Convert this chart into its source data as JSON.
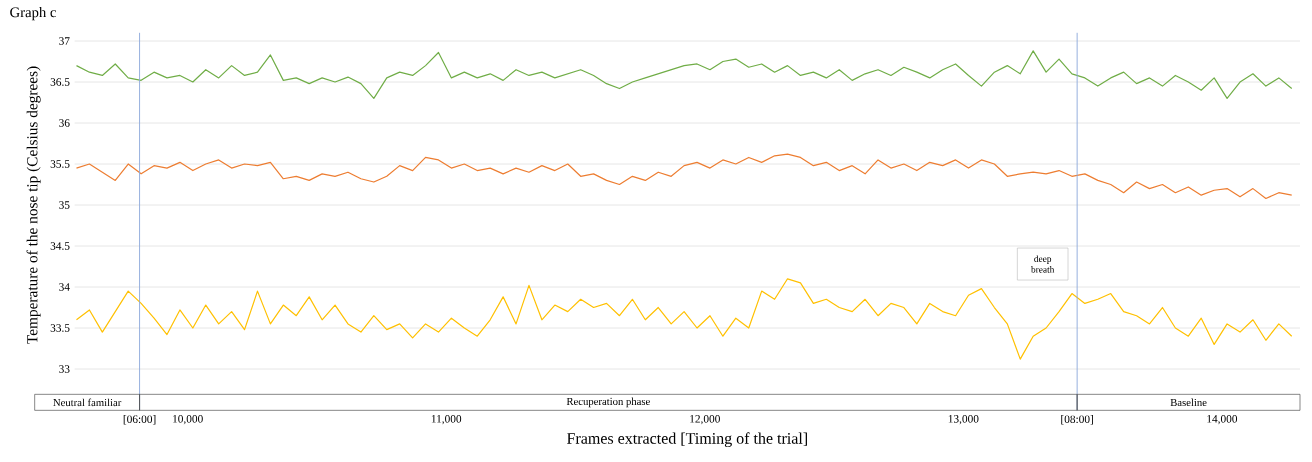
{
  "chart_data": {
    "type": "line",
    "title": "Graph c",
    "xlabel": "Frames extracted [Timing of the trial]",
    "ylabel": "Temperature of the nose tip (Celsius degrees)",
    "x": [
      9570,
      9620,
      9670,
      9720,
      9770,
      9820,
      9870,
      9920,
      9970,
      10020,
      10070,
      10120,
      10170,
      10220,
      10270,
      10320,
      10370,
      10420,
      10470,
      10520,
      10570,
      10620,
      10670,
      10720,
      10770,
      10820,
      10870,
      10920,
      10970,
      11020,
      11070,
      11120,
      11170,
      11220,
      11270,
      11320,
      11370,
      11420,
      11470,
      11520,
      11570,
      11620,
      11670,
      11720,
      11770,
      11820,
      11870,
      11920,
      11970,
      12020,
      12070,
      12120,
      12170,
      12220,
      12270,
      12320,
      12370,
      12420,
      12470,
      12520,
      12570,
      12620,
      12670,
      12720,
      12770,
      12820,
      12870,
      12920,
      12970,
      13020,
      13070,
      13120,
      13170,
      13220,
      13270,
      13320,
      13370,
      13420,
      13470,
      13520,
      13570,
      13620,
      13670,
      13720,
      13770,
      13820,
      13870,
      13920,
      13970,
      14020,
      14070,
      14120,
      14170,
      14220,
      14270
    ],
    "series": [
      {
        "color": "#70ad47",
        "values": [
          36.7,
          36.62,
          36.58,
          36.72,
          36.55,
          36.52,
          36.62,
          36.55,
          36.58,
          36.5,
          36.65,
          36.55,
          36.7,
          36.58,
          36.62,
          36.83,
          36.52,
          36.55,
          36.48,
          36.55,
          36.5,
          36.56,
          36.48,
          36.3,
          36.55,
          36.62,
          36.58,
          36.7,
          36.86,
          36.55,
          36.62,
          36.55,
          36.6,
          36.52,
          36.65,
          36.58,
          36.62,
          36.55,
          36.6,
          36.65,
          36.58,
          36.48,
          36.42,
          36.5,
          36.55,
          36.6,
          36.65,
          36.7,
          36.72,
          36.65,
          36.75,
          36.78,
          36.68,
          36.72,
          36.62,
          36.7,
          36.58,
          36.62,
          36.55,
          36.65,
          36.52,
          36.6,
          36.65,
          36.58,
          36.68,
          36.62,
          36.55,
          36.65,
          36.72,
          36.58,
          36.45,
          36.62,
          36.7,
          36.6,
          36.88,
          36.62,
          36.78,
          36.6,
          36.55,
          36.45,
          36.55,
          36.62,
          36.48,
          36.55,
          36.45,
          36.58,
          36.5,
          36.4,
          36.55,
          36.3,
          36.5,
          36.6,
          36.45,
          36.55,
          36.42
        ]
      },
      {
        "color": "#ed7d31",
        "values": [
          35.45,
          35.5,
          35.4,
          35.3,
          35.5,
          35.38,
          35.48,
          35.45,
          35.52,
          35.42,
          35.5,
          35.55,
          35.45,
          35.5,
          35.48,
          35.52,
          35.32,
          35.35,
          35.3,
          35.38,
          35.35,
          35.4,
          35.32,
          35.28,
          35.35,
          35.48,
          35.42,
          35.58,
          35.55,
          35.45,
          35.5,
          35.42,
          35.45,
          35.38,
          35.45,
          35.4,
          35.48,
          35.42,
          35.5,
          35.35,
          35.38,
          35.3,
          35.25,
          35.35,
          35.3,
          35.4,
          35.35,
          35.48,
          35.52,
          35.45,
          35.55,
          35.5,
          35.58,
          35.52,
          35.6,
          35.62,
          35.58,
          35.48,
          35.52,
          35.42,
          35.48,
          35.38,
          35.55,
          35.45,
          35.5,
          35.42,
          35.52,
          35.48,
          35.55,
          35.45,
          35.55,
          35.5,
          35.35,
          35.38,
          35.4,
          35.38,
          35.42,
          35.35,
          35.38,
          35.3,
          35.25,
          35.15,
          35.28,
          35.2,
          35.25,
          35.15,
          35.22,
          35.12,
          35.18,
          35.2,
          35.1,
          35.2,
          35.08,
          35.15,
          35.12
        ]
      },
      {
        "color": "#ffc000",
        "values": [
          33.6,
          33.72,
          33.45,
          33.7,
          33.95,
          33.8,
          33.62,
          33.42,
          33.72,
          33.5,
          33.78,
          33.55,
          33.7,
          33.48,
          33.95,
          33.55,
          33.78,
          33.65,
          33.88,
          33.6,
          33.78,
          33.55,
          33.45,
          33.65,
          33.48,
          33.55,
          33.38,
          33.55,
          33.45,
          33.62,
          33.5,
          33.4,
          33.6,
          33.88,
          33.55,
          34.02,
          33.6,
          33.78,
          33.7,
          33.85,
          33.75,
          33.8,
          33.65,
          33.85,
          33.6,
          33.75,
          33.55,
          33.7,
          33.5,
          33.65,
          33.4,
          33.62,
          33.5,
          33.95,
          33.85,
          34.1,
          34.05,
          33.8,
          33.85,
          33.75,
          33.7,
          33.85,
          33.65,
          33.8,
          33.75,
          33.55,
          33.8,
          33.7,
          33.65,
          33.9,
          33.98,
          33.75,
          33.55,
          33.12,
          33.4,
          33.5,
          33.7,
          33.92,
          33.8,
          33.85,
          33.92,
          33.7,
          33.65,
          33.55,
          33.75,
          33.5,
          33.4,
          33.62,
          33.3,
          33.55,
          33.45,
          33.6,
          33.35,
          33.55,
          33.4
        ]
      }
    ],
    "xlim": [
      9563,
      14302
    ],
    "ylim": [
      33,
      37
    ],
    "xticks": [
      {
        "value": 9814,
        "label": "[06:00]"
      },
      {
        "value": 10000,
        "label": "10,000"
      },
      {
        "value": 11000,
        "label": "11,000"
      },
      {
        "value": 12000,
        "label": "12,000"
      },
      {
        "value": 13000,
        "label": "13,000"
      },
      {
        "value": 13440,
        "label": "[08:00]"
      },
      {
        "value": 14000,
        "label": "14,000"
      }
    ],
    "yticks": [
      33,
      33.5,
      34,
      34.5,
      35,
      35.5,
      36,
      36.5,
      37
    ],
    "grid": "y",
    "ref_lines": [
      {
        "axis": "x",
        "value": 9814,
        "color": "#8faadc"
      },
      {
        "axis": "x",
        "value": 13440,
        "color": "#8faadc"
      }
    ],
    "annotations": [
      "Neutral familiar",
      "Recuperation phase",
      "Baseline",
      "deep breath"
    ]
  }
}
